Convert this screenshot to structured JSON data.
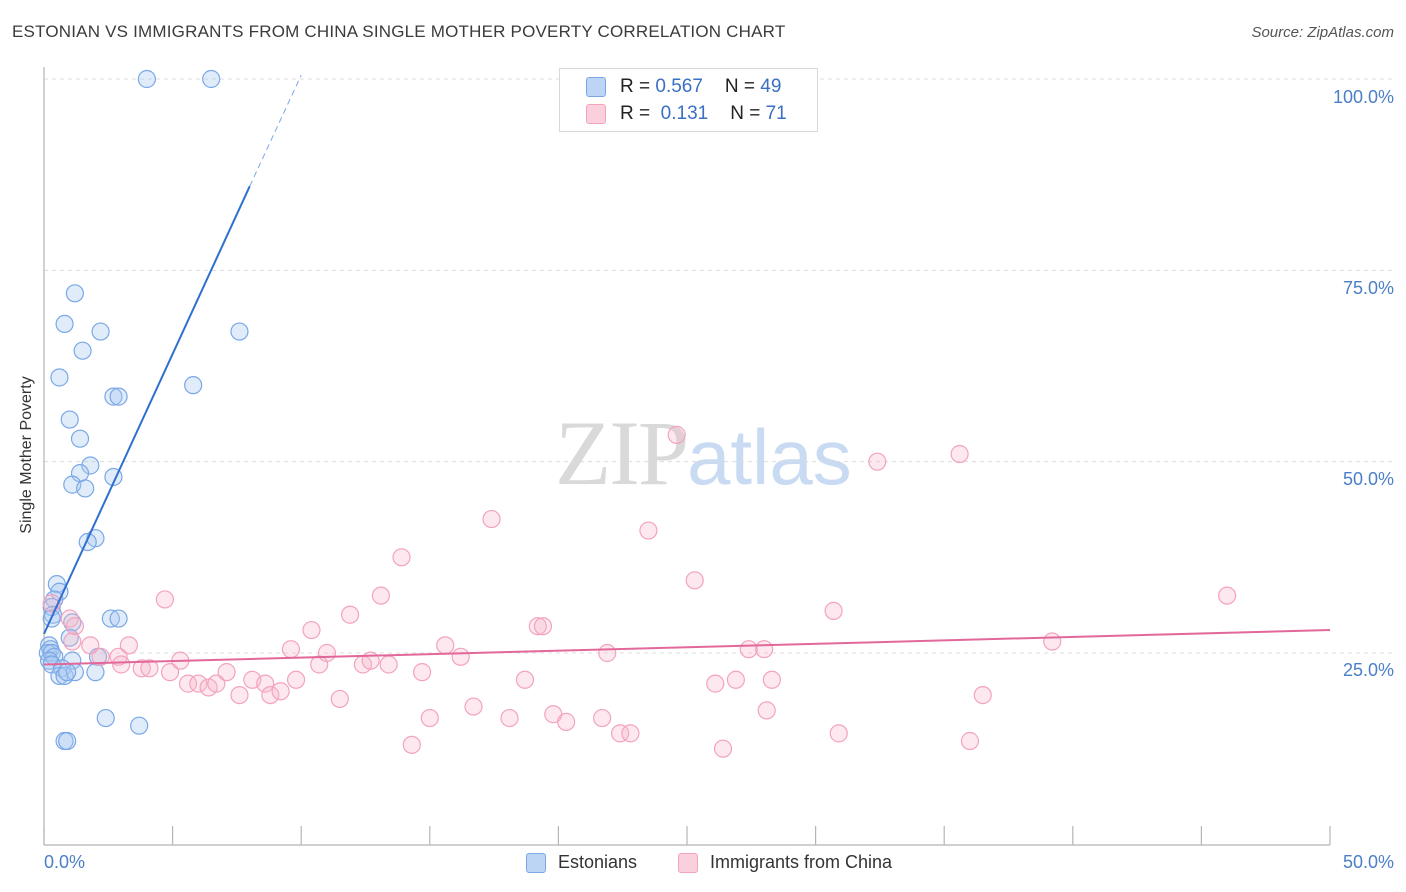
{
  "title": "ESTONIAN VS IMMIGRANTS FROM CHINA SINGLE MOTHER POVERTY CORRELATION CHART",
  "source": "Source: ZipAtlas.com",
  "watermark": {
    "zip": "ZIP",
    "atlas": "atlas"
  },
  "legend": {
    "rows": [
      {
        "r_label": "R = ",
        "r_value": "0.567",
        "n_label": "N = ",
        "n_value": "49",
        "color": "#a8c8f0"
      },
      {
        "r_label": "R = ",
        "r_value": " 0.131",
        "n_label": "N = ",
        "n_value": "71",
        "color": "#f7b8cb"
      }
    ]
  },
  "bottom_legend": [
    {
      "label": "Estonians",
      "color": "#a8c8f0"
    },
    {
      "label": "Immigrants from China",
      "color": "#f7b8cb"
    }
  ],
  "chart_data": {
    "type": "scatter",
    "title": "ESTONIAN VS IMMIGRANTS FROM CHINA SINGLE MOTHER POVERTY CORRELATION CHART",
    "xlabel": "",
    "ylabel": "Single Mother Poverty",
    "xlim": [
      0,
      50
    ],
    "ylim": [
      5,
      102
    ],
    "x_tick_labels": [
      "0.0%",
      "50.0%"
    ],
    "y_ticks": [
      25,
      50,
      75,
      100
    ],
    "y_tick_labels": [
      "25.0%",
      "50.0%",
      "75.0%",
      "100.0%"
    ],
    "grid": "horizontal dashed",
    "series": [
      {
        "name": "Estonians",
        "color": "#7aa8e6",
        "line_color": "#2f6fcf",
        "trend": {
          "x0": 0.0,
          "y0": 27.5,
          "x1": 8.0,
          "y1": 86.0,
          "dash_to_x": 10.0,
          "dash_to_y": 100.5
        },
        "points": [
          [
            4.0,
            100.0
          ],
          [
            6.5,
            100.0
          ],
          [
            1.2,
            72.0
          ],
          [
            0.8,
            68.0
          ],
          [
            2.2,
            67.0
          ],
          [
            7.6,
            67.0
          ],
          [
            1.5,
            64.5
          ],
          [
            0.6,
            61.0
          ],
          [
            5.8,
            60.0
          ],
          [
            2.7,
            58.5
          ],
          [
            2.9,
            58.5
          ],
          [
            1.0,
            55.5
          ],
          [
            1.4,
            53.0
          ],
          [
            1.8,
            49.5
          ],
          [
            1.4,
            48.5
          ],
          [
            2.7,
            48.0
          ],
          [
            1.1,
            47.0
          ],
          [
            1.6,
            46.5
          ],
          [
            2.0,
            40.0
          ],
          [
            1.7,
            39.5
          ],
          [
            0.5,
            34.0
          ],
          [
            0.6,
            33.0
          ],
          [
            0.4,
            32.0
          ],
          [
            0.3,
            31.0
          ],
          [
            0.35,
            30.0
          ],
          [
            0.3,
            29.5
          ],
          [
            1.1,
            29.0
          ],
          [
            2.6,
            29.5
          ],
          [
            2.9,
            29.5
          ],
          [
            1.0,
            27.0
          ],
          [
            0.2,
            26.0
          ],
          [
            0.25,
            25.5
          ],
          [
            0.15,
            25.0
          ],
          [
            0.3,
            25.0
          ],
          [
            0.4,
            24.5
          ],
          [
            0.2,
            24.0
          ],
          [
            0.3,
            23.5
          ],
          [
            1.1,
            24.0
          ],
          [
            2.1,
            24.5
          ],
          [
            0.7,
            23.0
          ],
          [
            0.6,
            22.0
          ],
          [
            0.8,
            22.0
          ],
          [
            1.2,
            22.5
          ],
          [
            2.0,
            22.5
          ],
          [
            0.9,
            22.5
          ],
          [
            2.4,
            16.5
          ],
          [
            3.7,
            15.5
          ],
          [
            0.8,
            13.5
          ],
          [
            0.9,
            13.5
          ]
        ]
      },
      {
        "name": "Immigrants from China",
        "color": "#f3a3bd",
        "line_color": "#e2689a",
        "trend": {
          "x0": 0.0,
          "y0": 23.5,
          "x1": 50.0,
          "y1": 28.0
        },
        "points": [
          [
            0.3,
            31.5
          ],
          [
            1.0,
            29.5
          ],
          [
            1.2,
            28.5
          ],
          [
            1.1,
            26.5
          ],
          [
            1.8,
            26.0
          ],
          [
            3.3,
            26.0
          ],
          [
            2.2,
            24.5
          ],
          [
            2.9,
            24.5
          ],
          [
            3.0,
            23.5
          ],
          [
            3.8,
            23.0
          ],
          [
            4.1,
            23.0
          ],
          [
            4.7,
            32.0
          ],
          [
            4.9,
            22.5
          ],
          [
            5.3,
            24.0
          ],
          [
            5.6,
            21.0
          ],
          [
            6.0,
            21.0
          ],
          [
            6.4,
            20.5
          ],
          [
            6.7,
            21.0
          ],
          [
            7.1,
            22.5
          ],
          [
            7.6,
            19.5
          ],
          [
            8.1,
            21.5
          ],
          [
            8.6,
            21.0
          ],
          [
            8.8,
            19.5
          ],
          [
            9.2,
            20.0
          ],
          [
            9.6,
            25.5
          ],
          [
            9.8,
            21.5
          ],
          [
            10.4,
            28.0
          ],
          [
            10.7,
            23.5
          ],
          [
            11.0,
            25.0
          ],
          [
            11.5,
            19.0
          ],
          [
            11.9,
            30.0
          ],
          [
            12.4,
            23.5
          ],
          [
            12.7,
            24.0
          ],
          [
            13.1,
            32.5
          ],
          [
            13.4,
            23.5
          ],
          [
            13.9,
            37.5
          ],
          [
            14.3,
            13.0
          ],
          [
            14.7,
            22.5
          ],
          [
            15.0,
            16.5
          ],
          [
            15.6,
            26.0
          ],
          [
            16.2,
            24.5
          ],
          [
            16.7,
            18.0
          ],
          [
            17.4,
            42.5
          ],
          [
            18.1,
            16.5
          ],
          [
            18.7,
            21.5
          ],
          [
            19.2,
            28.5
          ],
          [
            19.4,
            28.5
          ],
          [
            19.8,
            17.0
          ],
          [
            20.3,
            16.0
          ],
          [
            21.7,
            16.5
          ],
          [
            21.9,
            25.0
          ],
          [
            22.4,
            14.5
          ],
          [
            22.8,
            14.5
          ],
          [
            23.5,
            41.0
          ],
          [
            24.6,
            53.5
          ],
          [
            25.3,
            34.5
          ],
          [
            26.1,
            21.0
          ],
          [
            26.4,
            12.5
          ],
          [
            26.9,
            21.5
          ],
          [
            27.4,
            25.5
          ],
          [
            28.1,
            17.5
          ],
          [
            28.3,
            21.5
          ],
          [
            28.0,
            25.5
          ],
          [
            30.7,
            30.5
          ],
          [
            30.9,
            14.5
          ],
          [
            32.4,
            50.0
          ],
          [
            35.6,
            51.0
          ],
          [
            36.5,
            19.5
          ],
          [
            36.0,
            13.5
          ],
          [
            39.2,
            26.5
          ],
          [
            46.0,
            32.5
          ]
        ]
      }
    ]
  }
}
